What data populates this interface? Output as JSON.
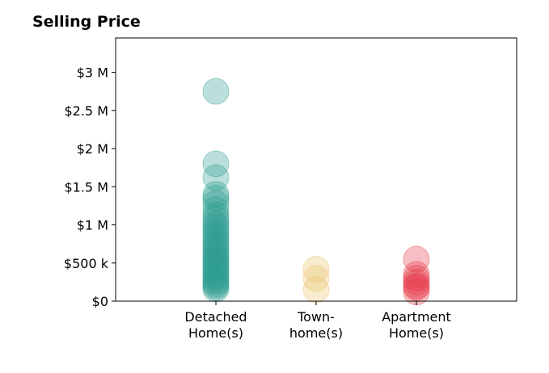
{
  "chart_data": {
    "type": "scatter",
    "title": "Selling Price",
    "categories": [
      "Detached\nHome(s)",
      "Town-\nhome(s)",
      "Apartment\nHome(s)"
    ],
    "y_ticks": [
      "$0",
      "$500 k",
      "$1 M",
      "$1.5 M",
      "$2 M",
      "$2.5 M",
      "$3 M"
    ],
    "y_tick_values": [
      0,
      500000,
      1000000,
      1500000,
      2000000,
      2500000,
      3000000
    ],
    "ylim": [
      0,
      3450000
    ],
    "xlim": [
      -1,
      3
    ],
    "grid": false,
    "series": [
      {
        "color": "#2a9d8f",
        "values": [
          2750000,
          1800000,
          1620000,
          1400000,
          1350000,
          1280000,
          1200000,
          1130000,
          1080000,
          1020000,
          980000,
          930000,
          890000,
          850000,
          800000,
          760000,
          720000,
          680000,
          640000,
          600000,
          570000,
          530000,
          500000,
          460000,
          420000,
          390000,
          350000,
          320000,
          280000,
          250000,
          220000,
          190000,
          160000
        ]
      },
      {
        "color": "#e9c46a",
        "values": [
          420000,
          300000,
          150000
        ]
      },
      {
        "color": "#e63946",
        "values": [
          550000,
          350000,
          300000,
          250000,
          200000,
          180000,
          120000
        ]
      }
    ]
  }
}
